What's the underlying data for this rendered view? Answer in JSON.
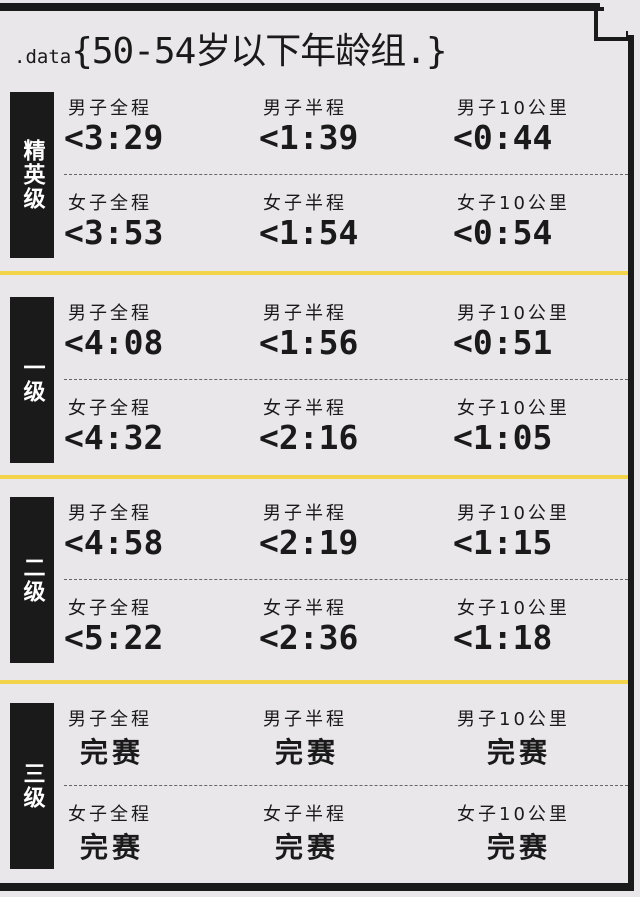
{
  "title": {
    "prefix": ".data",
    "text": "{50-54岁以下年龄组.}"
  },
  "colors": {
    "accent_line": "#f3d34a",
    "label_bg": "#1a1a1a",
    "background": "#e9e7ea"
  },
  "sections": [
    {
      "level": "精英级",
      "rows": [
        {
          "cells": [
            {
              "label": "男子全程",
              "value": "<3:29"
            },
            {
              "label": "男子半程",
              "value": "<1:39"
            },
            {
              "label": "男子10公里",
              "value": "<0:44"
            }
          ]
        },
        {
          "cells": [
            {
              "label": "女子全程",
              "value": "<3:53"
            },
            {
              "label": "女子半程",
              "value": "<1:54"
            },
            {
              "label": "女子10公里",
              "value": "<0:54"
            }
          ]
        }
      ]
    },
    {
      "level": "一级",
      "rows": [
        {
          "cells": [
            {
              "label": "男子全程",
              "value": "<4:08"
            },
            {
              "label": "男子半程",
              "value": "<1:56"
            },
            {
              "label": "男子10公里",
              "value": "<0:51"
            }
          ]
        },
        {
          "cells": [
            {
              "label": "女子全程",
              "value": "<4:32"
            },
            {
              "label": "女子半程",
              "value": "<2:16"
            },
            {
              "label": "女子10公里",
              "value": "<1:05"
            }
          ]
        }
      ]
    },
    {
      "level": "二级",
      "rows": [
        {
          "cells": [
            {
              "label": "男子全程",
              "value": "<4:58"
            },
            {
              "label": "男子半程",
              "value": "<2:19"
            },
            {
              "label": "男子10公里",
              "value": "<1:15"
            }
          ]
        },
        {
          "cells": [
            {
              "label": "女子全程",
              "value": "<5:22"
            },
            {
              "label": "女子半程",
              "value": "<2:36"
            },
            {
              "label": "女子10公里",
              "value": "<1:18"
            }
          ]
        }
      ]
    },
    {
      "level": "三级",
      "rows": [
        {
          "cells": [
            {
              "label": "男子全程",
              "value": "完赛"
            },
            {
              "label": "男子半程",
              "value": "完赛"
            },
            {
              "label": "男子10公里",
              "value": "完赛"
            }
          ]
        },
        {
          "cells": [
            {
              "label": "女子全程",
              "value": "完赛"
            },
            {
              "label": "女子半程",
              "value": "完赛"
            },
            {
              "label": "女子10公里",
              "value": "完赛"
            }
          ]
        }
      ]
    }
  ]
}
